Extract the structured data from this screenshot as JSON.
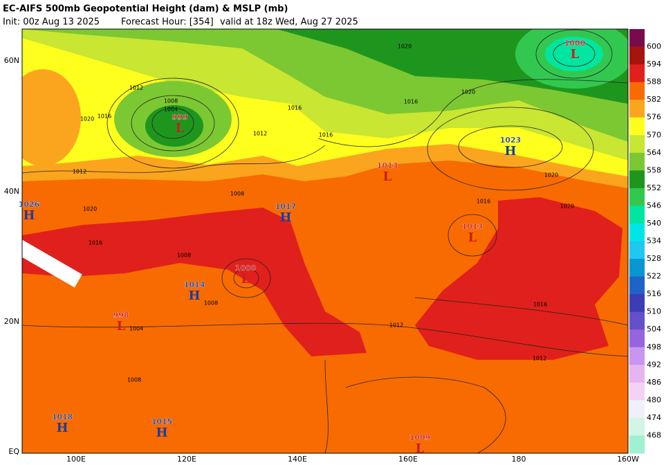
{
  "header": {
    "title": "EC-AIFS 500mb Geopotential Height (dam) & MSLP (mb)",
    "init": "Init: 00z Aug 13 2025",
    "forecast_hour": "Forecast Hour: [354]",
    "valid": "valid at 18z Wed, Aug 27 2025"
  },
  "lat_labels": [
    "60N",
    "40N",
    "20N",
    "EQ"
  ],
  "lon_labels": [
    "100E",
    "120E",
    "140E",
    "160E",
    "180",
    "160W"
  ],
  "colorbar": {
    "levels": [
      600,
      594,
      588,
      582,
      576,
      570,
      564,
      558,
      552,
      546,
      540,
      534,
      528,
      522,
      516,
      510,
      504,
      498,
      492,
      486,
      480,
      474,
      468
    ],
    "colors": [
      "#7a0a4e",
      "#a5140f",
      "#e0201c",
      "#f86b00",
      "#fba51e",
      "#ffff1e",
      "#c8e632",
      "#7cc832",
      "#1e961e",
      "#32c850",
      "#00e6a0",
      "#00e6e6",
      "#1ec8f0",
      "#0a96d2",
      "#1e64c8",
      "#3c3cb4",
      "#6450c8",
      "#9664dc",
      "#c896f0",
      "#e6b4f0",
      "#f5d2f5",
      "#f0f0fa",
      "#d2f5e6",
      "#a0f0d2"
    ]
  },
  "centers": [
    {
      "kind": "H",
      "value": "1026"
    },
    {
      "kind": "L",
      "value": "999"
    },
    {
      "kind": "H",
      "value": "1017"
    },
    {
      "kind": "L",
      "value": "1013"
    },
    {
      "kind": "H",
      "value": "1023"
    },
    {
      "kind": "L",
      "value": "1000"
    },
    {
      "kind": "L",
      "value": "1013"
    },
    {
      "kind": "L",
      "value": "1000"
    },
    {
      "kind": "H",
      "value": "1014"
    },
    {
      "kind": "L",
      "value": "998"
    },
    {
      "kind": "H",
      "value": "1018"
    },
    {
      "kind": "H",
      "value": "1015"
    },
    {
      "kind": "L",
      "value": "1009"
    }
  ],
  "contour_labels": [
    "1012",
    "1008",
    "1004",
    "1016",
    "1020",
    "1012",
    "1016",
    "1016",
    "1020",
    "1016",
    "1020",
    "1020",
    "1016",
    "1020",
    "1016",
    "1012",
    "1012",
    "1008",
    "1008",
    "1004",
    "1008",
    "1012",
    "1020",
    "1016",
    "1008"
  ]
}
